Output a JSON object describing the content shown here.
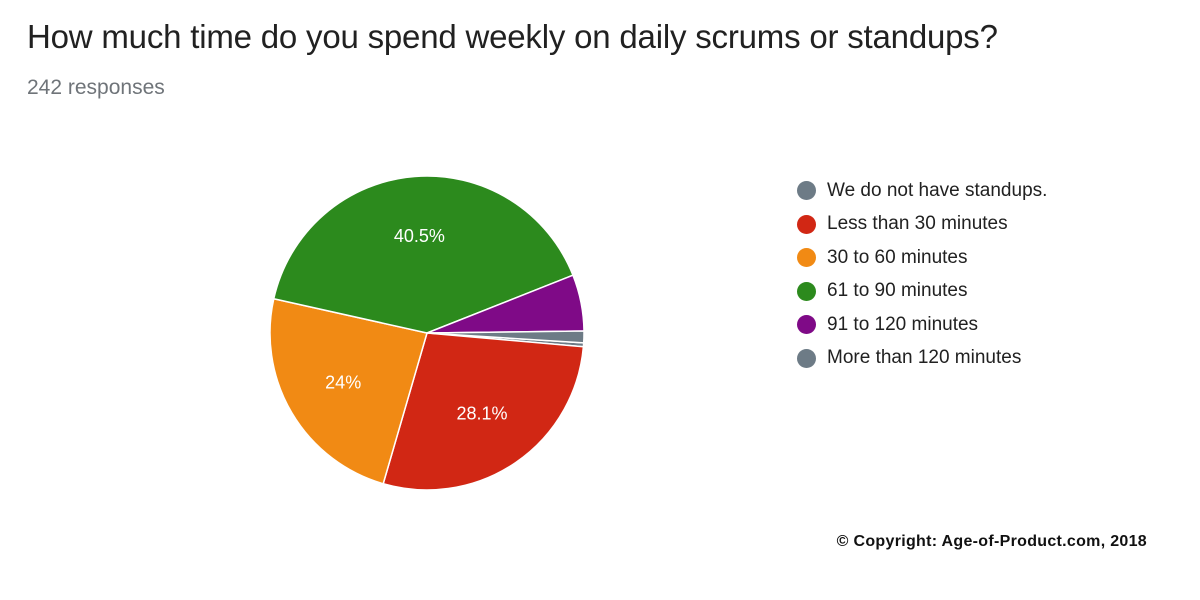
{
  "header": {
    "title": "How much time do you spend weekly on daily scrums or standups?",
    "responses": "242 responses"
  },
  "chart_data": {
    "type": "pie",
    "title": "How much time do you spend weekly on daily scrums or standups?",
    "slices": [
      {
        "name": "We do not have standups.",
        "value": 0.4,
        "label": "",
        "color": "#6d7b86"
      },
      {
        "name": "Less than 30 minutes",
        "value": 28.1,
        "label": "28.1%",
        "color": "#d12714"
      },
      {
        "name": "30 to 60 minutes",
        "value": 24,
        "label": "24%",
        "color": "#f18a14"
      },
      {
        "name": "61 to 90 minutes",
        "value": 40.5,
        "label": "40.5%",
        "color": "#2c8a1d"
      },
      {
        "name": "91 to 120 minutes",
        "value": 5.8,
        "label": "",
        "color": "#7f0a87"
      },
      {
        "name": "More than 120 minutes",
        "value": 1.2,
        "label": "",
        "color": "#6d7b86"
      }
    ],
    "legend_position": "right"
  },
  "footer": {
    "copyright": "© Copyright: Age-of-Product.com, 2018"
  }
}
